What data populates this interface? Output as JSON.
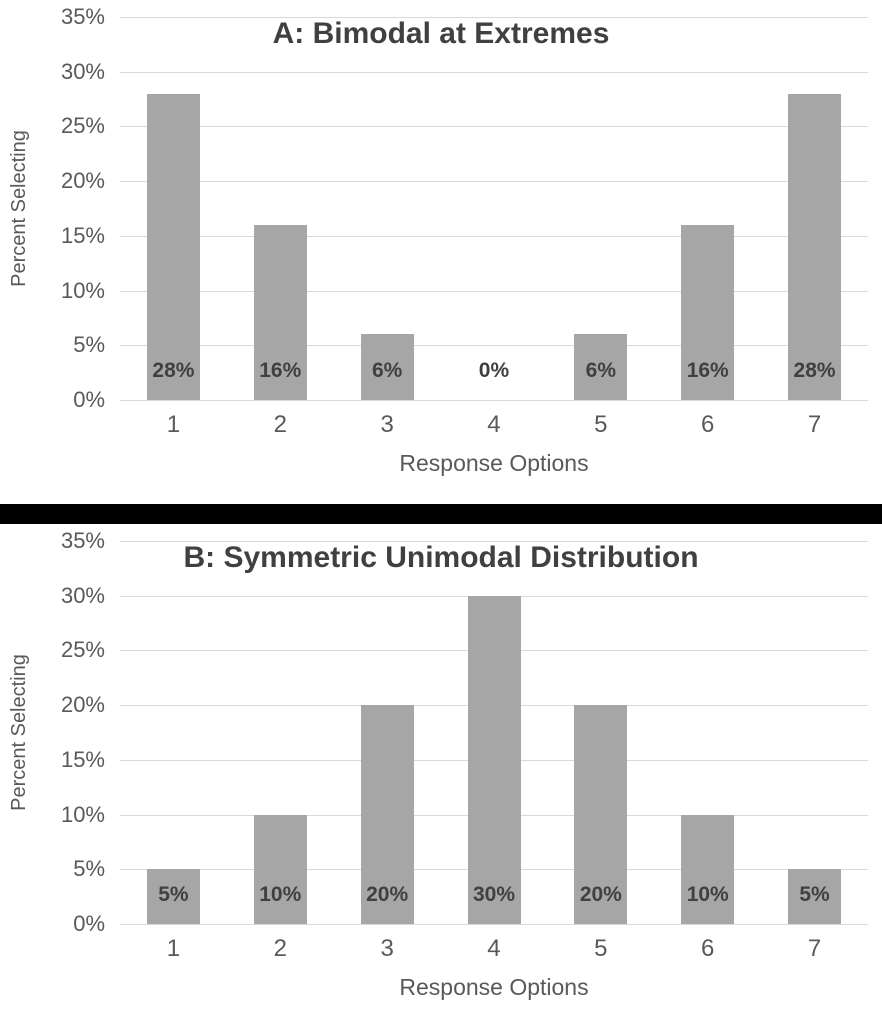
{
  "style": {
    "background_color": "#ffffff",
    "bar_color": "#a6a6a6",
    "gridline_color": "#d9d9d9",
    "title_color": "#404040",
    "data_label_color": "#404040",
    "axis_text_color": "#595959",
    "divider_color": "#000000"
  },
  "chart_data": [
    {
      "type": "bar",
      "title": "A: Bimodal at Extremes",
      "xlabel": "Response Options",
      "ylabel": "Percent Selecting",
      "categories": [
        "1",
        "2",
        "3",
        "4",
        "5",
        "6",
        "7"
      ],
      "values": [
        28,
        16,
        6,
        0,
        6,
        16,
        28
      ],
      "data_labels": [
        "28%",
        "16%",
        "6%",
        "0%",
        "6%",
        "16%",
        "28%"
      ],
      "ylim": [
        0,
        35
      ],
      "yticks": [
        0,
        5,
        10,
        15,
        20,
        25,
        30,
        35
      ],
      "ytick_labels": [
        "0%",
        "5%",
        "10%",
        "15%",
        "20%",
        "25%",
        "30%",
        "35%"
      ],
      "grid": true,
      "legend": "none"
    },
    {
      "type": "bar",
      "title": "B: Symmetric Unimodal Distribution",
      "xlabel": "Response Options",
      "ylabel": "Percent Selecting",
      "categories": [
        "1",
        "2",
        "3",
        "4",
        "5",
        "6",
        "7"
      ],
      "values": [
        5,
        10,
        20,
        30,
        20,
        10,
        5
      ],
      "data_labels": [
        "5%",
        "10%",
        "20%",
        "30%",
        "20%",
        "10%",
        "5%"
      ],
      "ylim": [
        0,
        35
      ],
      "yticks": [
        0,
        5,
        10,
        15,
        20,
        25,
        30,
        35
      ],
      "ytick_labels": [
        "0%",
        "5%",
        "10%",
        "15%",
        "20%",
        "25%",
        "30%",
        "35%"
      ],
      "grid": true,
      "legend": "none"
    }
  ]
}
